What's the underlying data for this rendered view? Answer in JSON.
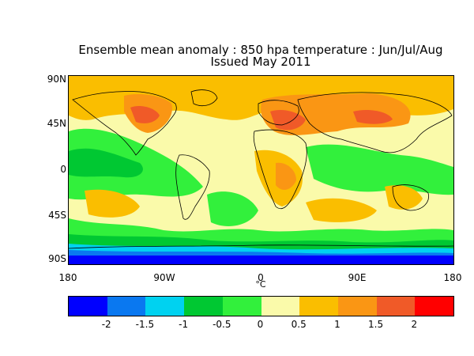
{
  "title_line1": "Ensemble mean anomaly : 850 hpa temperature : Jun/Jul/Aug",
  "title_line2": "Issued May 2011",
  "lat_labels": [
    "90N",
    "45N",
    "0",
    "45S",
    "90S"
  ],
  "lon_labels": [
    "180",
    "90W",
    "0",
    "90E",
    "180"
  ],
  "unit": "°C",
  "colorbar": {
    "labels": [
      "-2",
      "-1.5",
      "-1",
      "-0.5",
      "0",
      "0.5",
      "1",
      "1.5",
      "2"
    ],
    "colors": [
      "#0000ff",
      "#0a78f0",
      "#00d2f0",
      "#00c832",
      "#32f03c",
      "#fafaaa",
      "#fabe00",
      "#fa9614",
      "#f05a28",
      "#ff0000"
    ]
  },
  "map_colors": {
    "land_outline": "#000000",
    "near_zero": "#fafaaa",
    "slight_cool": "#32f03c",
    "cool": "#00c832",
    "warm": "#fabe00",
    "warmer": "#fa9614",
    "hot": "#f05a28",
    "coldest": "#0000ff",
    "cold": "#0a78f0",
    "cyan": "#00d2f0"
  }
}
